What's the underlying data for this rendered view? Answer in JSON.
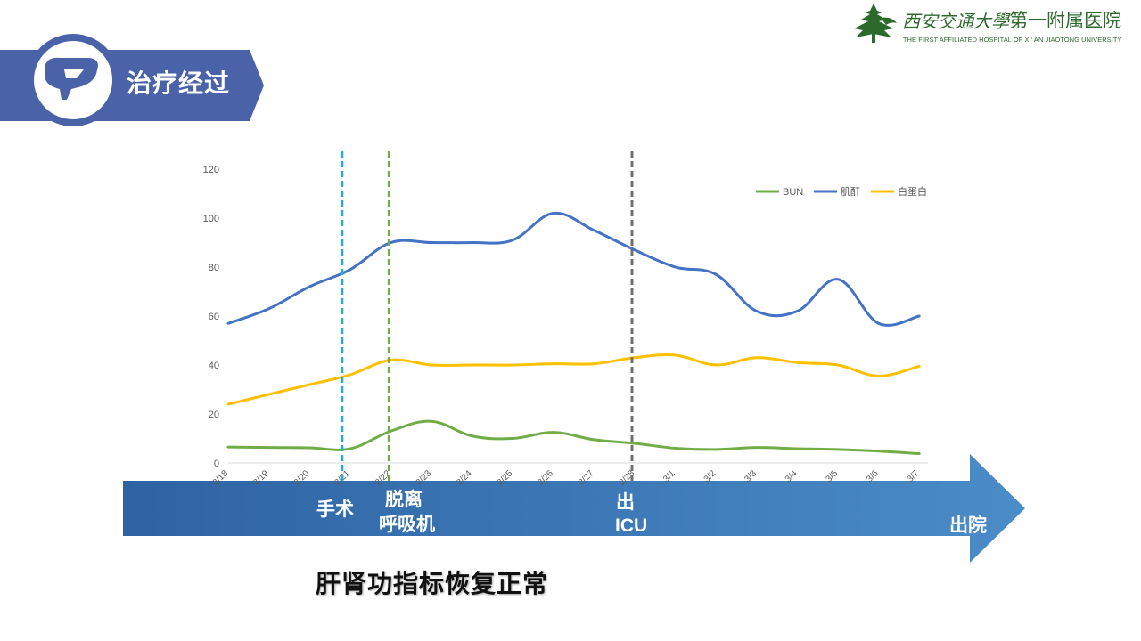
{
  "header": {
    "title": "治疗经过",
    "icon": "liver-icon"
  },
  "logo": {
    "script_text": "西安交通大學",
    "cn_text": "第一附属医院",
    "en_text": "THE FIRST AFFILIATED HOSPITAL OF XI' AN JIAOTONG UNIVERSITY",
    "icon": "pagoda-tree-icon"
  },
  "colors": {
    "accent": "#4a62a8",
    "bun": "#70ad47",
    "creatinine": "#4472c4",
    "albumin": "#ffc000",
    "timeline_dark": "#2e63a3",
    "timeline_light": "#4a8cc8",
    "marker_surgery": "#1fb0d6",
    "marker_ventilator": "#70ad47",
    "marker_icu": "#707070"
  },
  "timeline": {
    "surgery": "手术",
    "ventilator_line1": "脱离",
    "ventilator_line2": "呼吸机",
    "icu_line1": "出",
    "icu_line2": "ICU",
    "discharge": "出院"
  },
  "caption": "肝肾功指标恢复正常",
  "chart_data": {
    "type": "line",
    "categories": [
      "2/18",
      "2/19",
      "2/20",
      "2/21",
      "2/22",
      "2/23",
      "2/24",
      "2/25",
      "2/26",
      "2/27",
      "2/28",
      "3/1",
      "3/2",
      "3/3",
      "3/4",
      "3/5",
      "3/6",
      "3/7"
    ],
    "ylim": [
      0,
      120
    ],
    "yticks": [
      0,
      20,
      40,
      60,
      80,
      100,
      120
    ],
    "legend_position": "top-right",
    "series": [
      {
        "name": "BUN",
        "values": [
          6.5,
          6.3,
          6.2,
          5.8,
          13,
          17,
          11,
          10,
          12.5,
          9.5,
          8,
          6,
          5.5,
          6.3,
          5.8,
          5.5,
          4.8,
          3.8
        ]
      },
      {
        "name": "肌酐",
        "values": [
          57,
          63,
          72,
          79,
          90,
          90,
          90,
          91,
          102,
          95,
          87,
          80,
          77,
          62,
          62,
          75,
          57,
          60
        ]
      },
      {
        "name": "白蛋白",
        "values": [
          24,
          28,
          32,
          36,
          42,
          40,
          40,
          40,
          40.5,
          40.5,
          43,
          44,
          40,
          43,
          41,
          40,
          35.5,
          39.5
        ]
      }
    ],
    "markers": [
      {
        "label": "手术",
        "index": 3
      },
      {
        "label": "脱离呼吸机",
        "index": 4
      },
      {
        "label": "出ICU",
        "index": 10
      }
    ]
  }
}
